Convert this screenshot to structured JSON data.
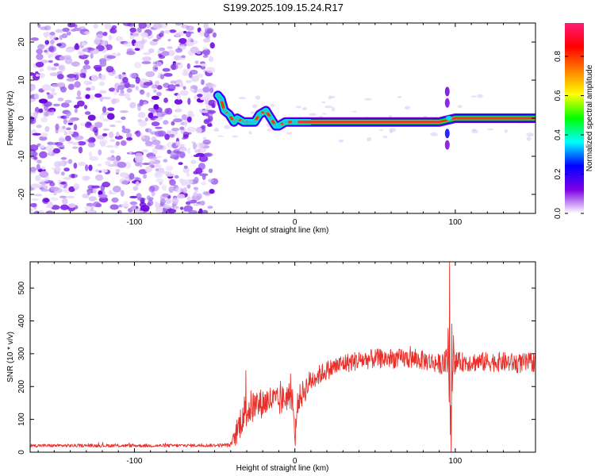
{
  "figure": {
    "title": "S199.2025.109.15.24.R17"
  },
  "chart_data": [
    {
      "type": "heatmap",
      "name": "spectrogram",
      "xlabel": "Height of straight line (km)",
      "ylabel": "Frequency (Hz)",
      "xlim": [
        -165,
        150
      ],
      "ylim": [
        -25,
        25
      ],
      "xticks": [
        -100,
        0,
        100
      ],
      "yticks": [
        -20,
        -10,
        0,
        10,
        20
      ],
      "noise_region": {
        "x": [
          -165,
          -50
        ],
        "y": [
          -25,
          25
        ]
      },
      "signal_ridge": [
        {
          "x": -48,
          "y": 6
        },
        {
          "x": -46,
          "y": 5
        },
        {
          "x": -44,
          "y": 2
        },
        {
          "x": -41,
          "y": 1
        },
        {
          "x": -38,
          "y": -1
        },
        {
          "x": -36,
          "y": 0
        },
        {
          "x": -32,
          "y": -1
        },
        {
          "x": -28,
          "y": -1
        },
        {
          "x": -25,
          "y": -1
        },
        {
          "x": -22,
          "y": 1
        },
        {
          "x": -18,
          "y": 2
        },
        {
          "x": -15,
          "y": 0
        },
        {
          "x": -12,
          "y": -2
        },
        {
          "x": -10,
          "y": -2
        },
        {
          "x": -6,
          "y": -1
        },
        {
          "x": 0,
          "y": -1
        },
        {
          "x": 10,
          "y": -1
        },
        {
          "x": 30,
          "y": -1
        },
        {
          "x": 60,
          "y": -1
        },
        {
          "x": 90,
          "y": -1
        },
        {
          "x": 100,
          "y": 0
        },
        {
          "x": 130,
          "y": 0
        },
        {
          "x": 150,
          "y": 0
        }
      ],
      "colorbar": {
        "label": "Normalized spectral amplitude",
        "range": [
          0.0,
          0.97
        ],
        "ticks": [
          0.0,
          0.2,
          0.4,
          0.6,
          0.8
        ],
        "tick_labels": [
          "0.0",
          "0.2",
          "0.4",
          "0.6",
          "0.8"
        ],
        "colormap": [
          "#ffffff",
          "#7d00e6",
          "#0000ff",
          "#00ffff",
          "#00ff00",
          "#ffff00",
          "#ff8000",
          "#ff0000",
          "#ff1a78"
        ]
      }
    },
    {
      "type": "line",
      "name": "snr",
      "xlabel": "Height of straight line (km)",
      "ylabel": "SNR (10 * v/v)",
      "xlim": [
        -165,
        150
      ],
      "ylim": [
        0,
        580
      ],
      "xticks": [
        -100,
        0,
        100
      ],
      "yticks": [
        0,
        100,
        200,
        300,
        400,
        500
      ],
      "color": "#e8302a",
      "series": [
        {
          "name": "SNR",
          "x": [
            -165,
            -120,
            -80,
            -50,
            -40,
            -36,
            -33,
            -30,
            -28,
            -25,
            -20,
            -15,
            -10,
            -5,
            -2,
            0,
            2,
            5,
            10,
            15,
            20,
            25,
            30,
            40,
            50,
            60,
            70,
            80,
            90,
            94,
            96,
            97,
            98,
            100,
            110,
            120,
            130,
            140,
            150
          ],
          "mean": [
            20,
            20,
            20,
            21,
            22,
            60,
            110,
            130,
            135,
            140,
            150,
            160,
            150,
            170,
            175,
            55,
            160,
            180,
            220,
            235,
            250,
            260,
            270,
            280,
            285,
            285,
            285,
            280,
            270,
            270,
            330,
            40,
            330,
            275,
            275,
            275,
            275,
            270,
            275
          ],
          "noise": [
            5,
            5,
            5,
            5,
            6,
            40,
            55,
            60,
            55,
            50,
            45,
            45,
            45,
            45,
            45,
            20,
            40,
            40,
            35,
            30,
            30,
            30,
            30,
            30,
            30,
            30,
            30,
            30,
            30,
            40,
            150,
            40,
            150,
            30,
            30,
            30,
            30,
            30,
            30
          ],
          "spikes": [
            {
              "x": 96.5,
              "y": 580
            },
            {
              "x": 97.5,
              "y": 0
            },
            {
              "x": 0.3,
              "y": 20
            }
          ]
        }
      ]
    }
  ]
}
